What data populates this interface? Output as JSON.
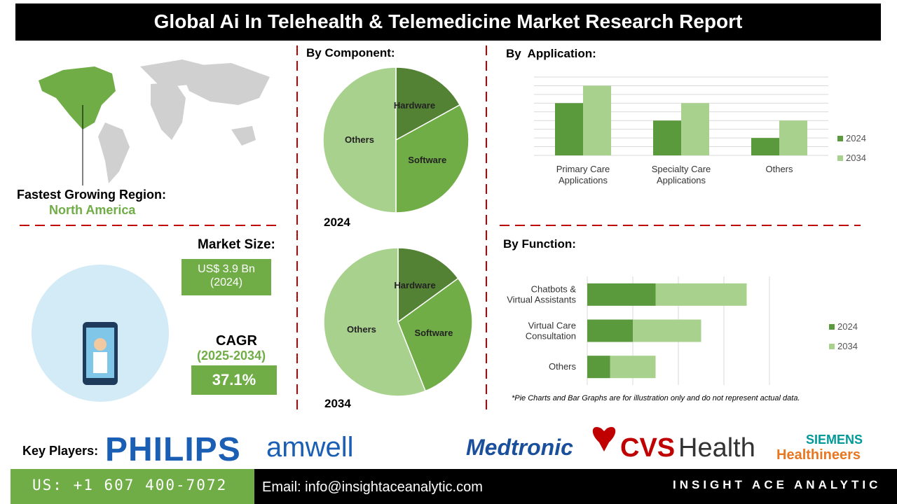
{
  "header": {
    "title": "Global Ai In Telehealth & Telemedicine Market Research Report"
  },
  "region": {
    "label": "Fastest Growing Region:",
    "value": "North America"
  },
  "market_size": {
    "label": "Market Size:",
    "value": "US$ 3.9 Bn\n(2024)"
  },
  "cagr": {
    "label": "CAGR",
    "period": "(2025-2034)",
    "value": "37.1%"
  },
  "component_heading": "By Component:",
  "chart_data": [
    {
      "type": "pie",
      "title": "2024",
      "categories": [
        "Hardware",
        "Software",
        "Others"
      ],
      "values": [
        17,
        33,
        50
      ],
      "colors": [
        "#548235",
        "#70ad47",
        "#a9d18e"
      ]
    },
    {
      "type": "pie",
      "title": "2034",
      "categories": [
        "Hardware",
        "Software",
        "Others"
      ],
      "values": [
        15,
        29,
        56
      ],
      "colors": [
        "#548235",
        "#70ad47",
        "#a9d18e"
      ]
    },
    {
      "type": "bar",
      "title": "By  Application:",
      "categories": [
        "Primary Care\nApplications",
        "Specialty Care\nApplications",
        "Others"
      ],
      "series": [
        {
          "name": "2024",
          "color": "#5b9a3c",
          "values": [
            6,
            4,
            2
          ]
        },
        {
          "name": "2034",
          "color": "#a9d18e",
          "values": [
            8,
            6,
            4
          ]
        }
      ],
      "ylim": [
        0,
        9
      ],
      "yticks": [
        0,
        1,
        2,
        3,
        4,
        5,
        6,
        7,
        8,
        9
      ],
      "grid": true
    },
    {
      "type": "bar",
      "orientation": "horizontal",
      "stacked": true,
      "title": "By Function:",
      "categories": [
        "Chatbots &\nVirtual Assistants",
        "Virtual Care\nConsultation",
        "Others"
      ],
      "series": [
        {
          "name": "2024",
          "color": "#5b9a3c",
          "values": [
            1.5,
            1,
            0.5
          ]
        },
        {
          "name": "2034",
          "color": "#a9d18e",
          "values": [
            2,
            1.5,
            1
          ]
        }
      ],
      "xlim": [
        0,
        4
      ],
      "xticks": [
        0,
        1,
        2,
        3,
        4
      ],
      "grid": true
    }
  ],
  "note": "*Pie Charts and Bar Graphs are for illustration only and do not represent actual data.",
  "key_players": {
    "label": "Key Players:",
    "philips": "PHILIPS",
    "amwell": "amwell",
    "medtronic": "Medtronic",
    "cvs": "CVS",
    "cvs_health": "Health",
    "siemens": "SIEMENS",
    "healthineers": "Healthineers"
  },
  "footer": {
    "phone": "US: +1 607 400-7072",
    "email": "Email: info@insightaceanalytic.com",
    "brand": "INSIGHT ACE ANALYTIC"
  }
}
